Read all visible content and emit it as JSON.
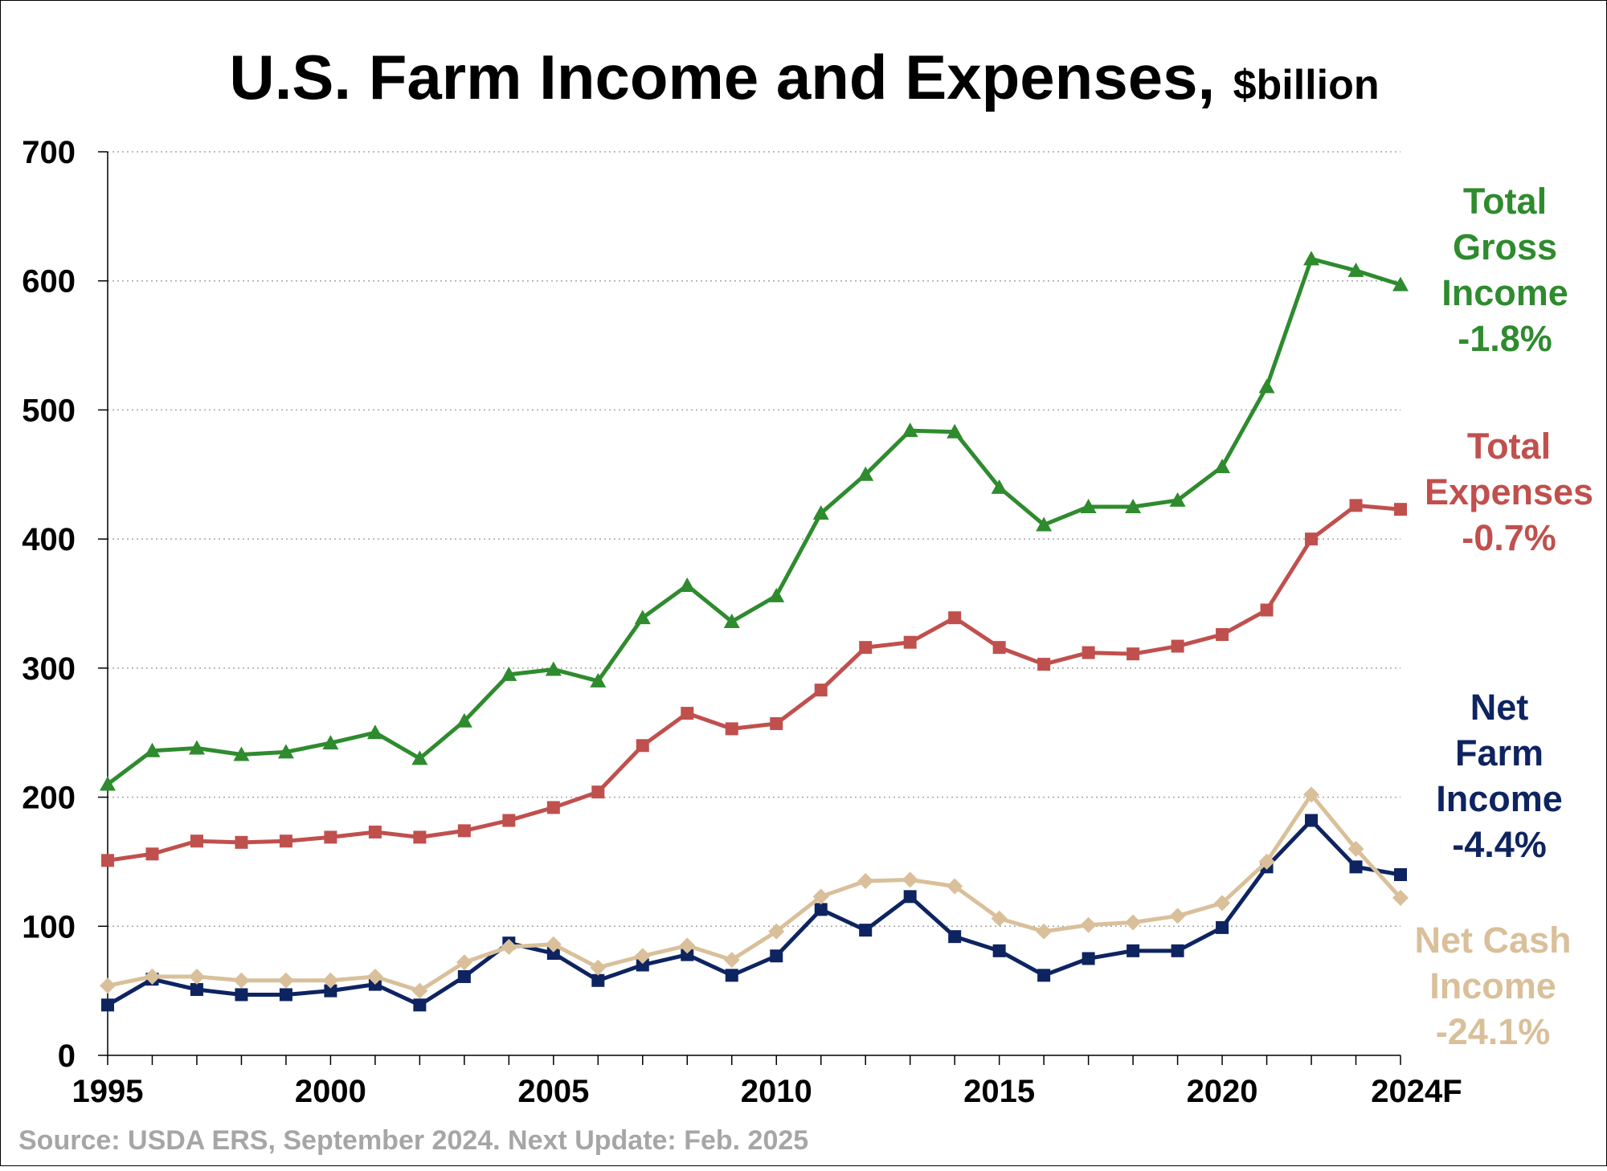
{
  "chart_data": {
    "type": "line",
    "title": "U.S. Farm Income and Expenses,",
    "title_unit": "$billion",
    "source": "Source: USDA ERS, September 2024. Next Update: Feb. 2025",
    "xlabel": "",
    "ylabel": "",
    "ylim": [
      0,
      700
    ],
    "yticks": [
      0,
      100,
      200,
      300,
      400,
      500,
      600,
      700
    ],
    "xlim": [
      1995,
      2024
    ],
    "xtick_labels": [
      "1995",
      "2000",
      "2005",
      "2010",
      "2015",
      "2020",
      "2024F"
    ],
    "grid": true,
    "x": [
      1995,
      1996,
      1997,
      1998,
      1999,
      2000,
      2001,
      2002,
      2003,
      2004,
      2005,
      2006,
      2007,
      2008,
      2009,
      2010,
      2011,
      2012,
      2013,
      2014,
      2015,
      2016,
      2017,
      2018,
      2019,
      2020,
      2021,
      2022,
      2023,
      2024
    ],
    "series": [
      {
        "name": "Total Gross Income",
        "change": "-1.8%",
        "color": "#2e8b2e",
        "marker": "triangle",
        "values": [
          210,
          236,
          238,
          233,
          235,
          242,
          250,
          230,
          259,
          295,
          299,
          290,
          339,
          364,
          336,
          356,
          420,
          450,
          484,
          483,
          440,
          411,
          425,
          425,
          430,
          456,
          518,
          617,
          608,
          597
        ]
      },
      {
        "name": "Total Expenses",
        "change": "-0.7%",
        "color": "#c0504d",
        "marker": "square",
        "values": [
          151,
          156,
          166,
          165,
          166,
          169,
          173,
          169,
          174,
          182,
          192,
          204,
          240,
          265,
          253,
          257,
          283,
          316,
          320,
          339,
          316,
          303,
          312,
          311,
          317,
          326,
          345,
          400,
          426,
          423
        ]
      },
      {
        "name": "Net Farm Income",
        "change": "-4.4%",
        "color": "#0e2461",
        "marker": "square",
        "values": [
          39,
          59,
          51,
          47,
          47,
          50,
          55,
          39,
          61,
          87,
          79,
          58,
          70,
          78,
          62,
          77,
          113,
          97,
          123,
          92,
          81,
          62,
          75,
          81,
          81,
          99,
          146,
          182,
          146,
          140
        ]
      },
      {
        "name": "Net Cash Income",
        "change": "-24.1%",
        "color": "#d9c09a",
        "marker": "diamond",
        "values": [
          54,
          61,
          61,
          58,
          58,
          58,
          61,
          50,
          72,
          84,
          86,
          68,
          77,
          85,
          74,
          96,
          123,
          135,
          136,
          131,
          106,
          96,
          101,
          103,
          108,
          118,
          150,
          202,
          160,
          122
        ]
      }
    ],
    "series_labels": [
      {
        "lines": [
          "Total",
          "Gross",
          "Income",
          "-1.8%"
        ],
        "color": "#2e8b2e"
      },
      {
        "lines": [
          "Total",
          "Expenses",
          "-0.7%"
        ],
        "color": "#c0504d"
      },
      {
        "lines": [
          "Net",
          "Farm",
          "Income",
          "-4.4%"
        ],
        "color": "#0e2461"
      },
      {
        "lines": [
          "Net Cash",
          "Income",
          "-24.1%"
        ],
        "color": "#d9c09a"
      }
    ]
  }
}
